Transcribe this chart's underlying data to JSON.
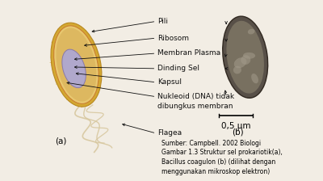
{
  "bg_color": "#f2ede4",
  "cell_a_label": "(a)",
  "cell_b_label": "(b)",
  "scale_bar": "0,5 μm",
  "source_text": "Sumber: Campbell. 2002 Biologi\nGambar 1.3 Struktur sel prokariotik(a),\nBacillus coagulon (b) (dilihat dengan\nmenggunakan mikroskop elektron)",
  "outer_cell_color": "#d4a832",
  "outer_cell_edge": "#b88820",
  "inner_cell_color": "#e8c870",
  "inner_cell_edge": "#c87830",
  "nucleus_color": "#b0a8cc",
  "nucleus_edge": "#8878aa",
  "pili_color": "#d4b050",
  "flagella_color": "#d8c8a0",
  "electron_cell_bg": "#b0a898",
  "electron_cell_dark": "#585048",
  "electron_cell_edge": "#302820",
  "font_size": 6.5,
  "source_font_size": 5.5,
  "label_color": "#101010",
  "arrow_color": "#101010"
}
